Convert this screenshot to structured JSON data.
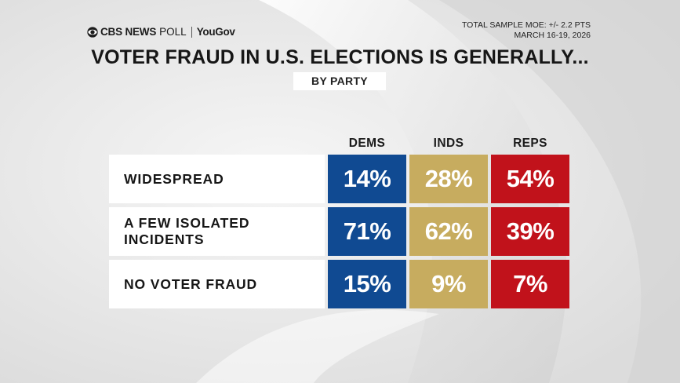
{
  "brand": {
    "network": "CBS NEWS",
    "poll": "POLL",
    "partner": "YouGov"
  },
  "moe": {
    "line1": "TOTAL SAMPLE MOE: +/- 2.2 PTS",
    "line2": "MARCH 16-19, 2026"
  },
  "colors": {
    "dems": "#104a92",
    "inds": "#c7ac5f",
    "reps": "#c1121b"
  },
  "chart_data": {
    "type": "table",
    "title": "VOTER FRAUD IN U.S. ELECTIONS IS GENERALLY...",
    "subtitle": "BY PARTY",
    "columns": [
      "DEMS",
      "INDS",
      "REPS"
    ],
    "rows": [
      {
        "label": "WIDESPREAD",
        "values": [
          14,
          28,
          54
        ],
        "display": [
          "14%",
          "28%",
          "54%"
        ]
      },
      {
        "label": "A FEW ISOLATED\nINCIDENTS",
        "values": [
          71,
          62,
          39
        ],
        "display": [
          "71%",
          "62%",
          "39%"
        ]
      },
      {
        "label": "NO VOTER FRAUD",
        "values": [
          15,
          9,
          7
        ],
        "display": [
          "15%",
          "9%",
          "7%"
        ]
      }
    ],
    "unit": "%"
  }
}
